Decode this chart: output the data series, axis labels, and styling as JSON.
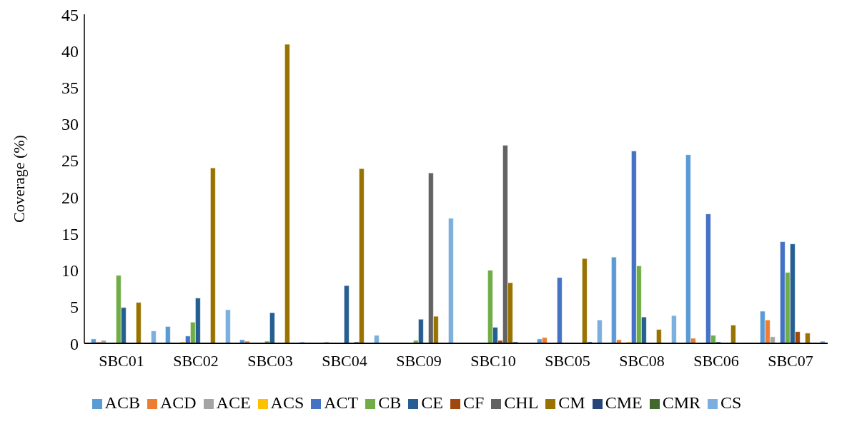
{
  "chart_data": {
    "type": "bar",
    "ylabel": "Coverage (%)",
    "categories": [
      "SBC01",
      "SBC02",
      "SBC03",
      "SBC04",
      "SBC09",
      "SBC10",
      "SBC05",
      "SBC08",
      "SBC06",
      "SBC07"
    ],
    "ylim": [
      0,
      45
    ],
    "yticks": [
      0,
      5,
      10,
      15,
      20,
      25,
      30,
      35,
      40,
      45
    ],
    "grid": false,
    "legend": "bottom",
    "series": [
      {
        "name": "ACB",
        "color": "#5b9bd5",
        "values": [
          0.6,
          2.3,
          0.5,
          0,
          0,
          0,
          0.6,
          11.8,
          25.8,
          4.4
        ]
      },
      {
        "name": "ACD",
        "color": "#ed7d31",
        "values": [
          0.2,
          null,
          0.3,
          0,
          0,
          0,
          0.8,
          0.5,
          0.7,
          3.2
        ]
      },
      {
        "name": "ACE",
        "color": "#a5a5a5",
        "values": [
          0.4,
          0,
          0,
          0.2,
          0,
          0,
          0,
          0,
          0,
          0.9
        ]
      },
      {
        "name": "ACS",
        "color": "#ffc000",
        "values": [
          0,
          0.2,
          0,
          0,
          0,
          0,
          0,
          0.2,
          0,
          0
        ]
      },
      {
        "name": "ACT",
        "color": "#4472c4",
        "values": [
          0,
          1.0,
          0,
          0,
          0,
          0,
          9.0,
          26.3,
          17.7,
          13.9
        ]
      },
      {
        "name": "CB",
        "color": "#70ad47",
        "values": [
          9.3,
          2.9,
          0.3,
          0,
          0.4,
          10.0,
          0,
          10.6,
          1.1,
          9.7
        ]
      },
      {
        "name": "CE",
        "color": "#255e91",
        "values": [
          4.9,
          6.2,
          4.2,
          7.9,
          3.3,
          2.2,
          0,
          3.6,
          0.2,
          13.6
        ]
      },
      {
        "name": "CF",
        "color": "#9e480e",
        "values": [
          0,
          0,
          0,
          0,
          0,
          0.4,
          0,
          0,
          0,
          1.6
        ]
      },
      {
        "name": "CHL",
        "color": "#636363",
        "values": [
          0,
          0,
          0,
          0.2,
          23.3,
          27.1,
          0,
          0,
          0,
          0
        ]
      },
      {
        "name": "CM",
        "color": "#997300",
        "values": [
          5.6,
          24.0,
          40.9,
          23.9,
          3.7,
          8.3,
          11.6,
          1.9,
          2.5,
          1.4
        ]
      },
      {
        "name": "CME",
        "color": "#264478",
        "values": [
          0,
          0,
          0,
          0,
          0,
          0.2,
          0.2,
          0,
          0,
          0
        ]
      },
      {
        "name": "CMR",
        "color": "#43682b",
        "values": [
          0,
          0,
          0,
          0,
          0,
          0,
          0,
          0,
          0,
          0
        ]
      },
      {
        "name": "CS",
        "color": "#7cafdd",
        "values": [
          1.7,
          4.6,
          0.2,
          1.1,
          17.1,
          0,
          3.2,
          3.8,
          0,
          0.3
        ]
      }
    ]
  }
}
